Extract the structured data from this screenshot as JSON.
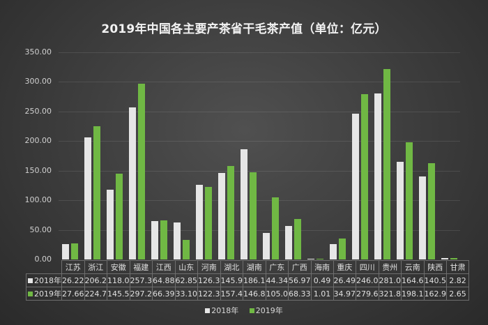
{
  "chart_data": {
    "type": "bar",
    "title": "2019年中国各主要产茶省干毛茶产值（单位：亿元）",
    "xlabel": "",
    "ylabel": "",
    "ylim": [
      0,
      350
    ],
    "yticks": [
      "0.00",
      "50.00",
      "100.00",
      "150.00",
      "200.00",
      "250.00",
      "300.00",
      "350.00"
    ],
    "grid": true,
    "legend_position": "bottom",
    "categories": [
      "江苏",
      "浙江",
      "安徽",
      "福建",
      "江西",
      "山东",
      "河南",
      "湖北",
      "湖南",
      "广东",
      "广西",
      "海南",
      "重庆",
      "四川",
      "贵州",
      "云南",
      "陕西",
      "甘肃"
    ],
    "series": [
      {
        "name": "2018年",
        "color": "#e6e6e6",
        "values": [
          26.22,
          206.2,
          118.0,
          257.3,
          64.88,
          62.85,
          126.3,
          145.9,
          186.1,
          44.34,
          56.97,
          0.49,
          26.49,
          246.0,
          281.0,
          164.6,
          140.5,
          2.82
        ],
        "labels": [
          "26.22",
          "206.2",
          "118.0",
          "257.3",
          "64.88",
          "62.85",
          "126.3",
          "145.9",
          "186.1",
          "44.34",
          "56.97",
          "0.49",
          "26.49",
          "246.0",
          "281.0",
          "164.6",
          "140.5",
          "2.82"
        ]
      },
      {
        "name": "2019年",
        "color": "#70b844",
        "values": [
          27.66,
          224.7,
          145.5,
          297.2,
          66.39,
          33.1,
          122.3,
          157.4,
          146.8,
          105.0,
          68.33,
          1.01,
          34.97,
          279.6,
          321.8,
          198.1,
          162.9,
          2.65
        ],
        "labels": [
          "27.66",
          "224.7",
          "145.5",
          "297.2",
          "66.39",
          "33.10",
          "122.3",
          "157.4",
          "146.8",
          "105.0",
          "68.33",
          "1.01",
          "34.97",
          "279.6",
          "321.8",
          "198.1",
          "162.9",
          "2.65"
        ]
      }
    ],
    "data_table": true
  }
}
